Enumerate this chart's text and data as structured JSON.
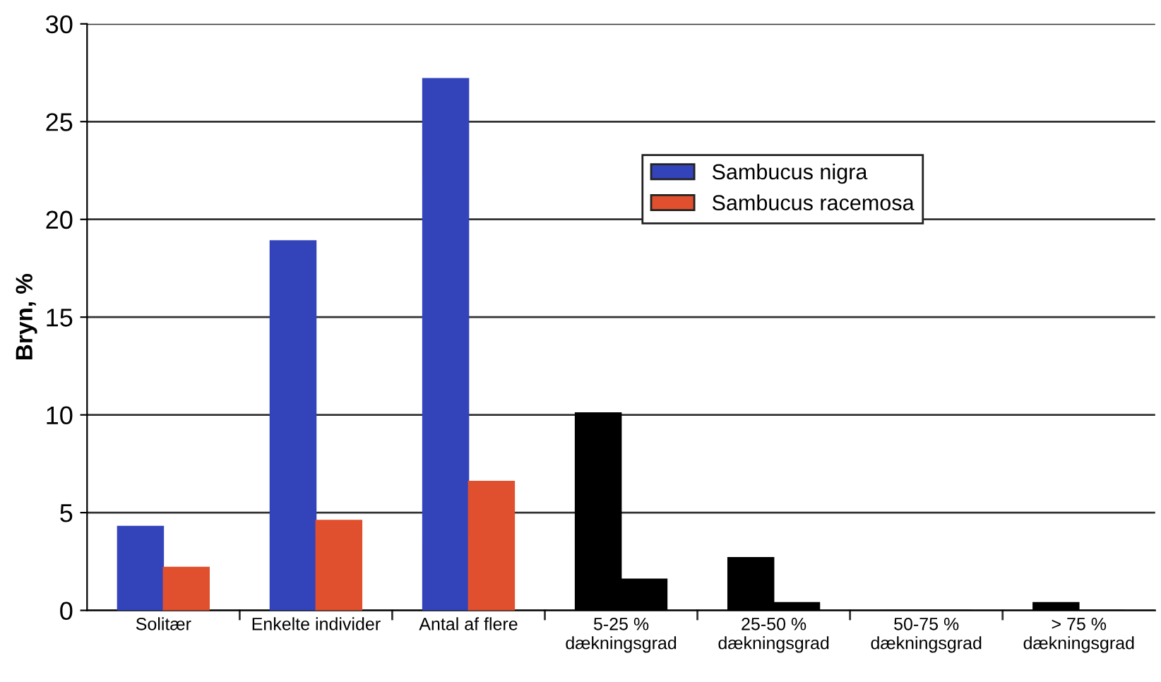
{
  "chart_data": {
    "type": "bar",
    "ylabel": "Bryn, %",
    "categories": [
      "Solitær",
      "Enkelte individer",
      "Antal af flere",
      "5-25 %\ndækningsgrad",
      "25-50 %\ndækningsgrad",
      "50-75 %\ndækningsgrad",
      "> 75 %\ndækningsgrad"
    ],
    "series": [
      {
        "name": "Sambucus nigra",
        "color": "#3344bb",
        "colors": [
          "#3344bb",
          "#3344bb",
          "#3344bb",
          "#000000",
          "#000000",
          "#000000",
          "#000000"
        ],
        "values": [
          4.3,
          18.9,
          27.2,
          10.1,
          2.7,
          0,
          0.4
        ]
      },
      {
        "name": "Sambucus racemosa",
        "color": "#e0502e",
        "colors": [
          "#e0502e",
          "#e0502e",
          "#e0502e",
          "#000000",
          "#000000",
          "#000000",
          "#000000"
        ],
        "values": [
          2.2,
          4.6,
          6.6,
          1.6,
          0.4,
          0,
          0
        ]
      }
    ],
    "ylim": [
      0,
      30
    ],
    "yticks": [
      0,
      5,
      10,
      15,
      20,
      25,
      30
    ],
    "grid": "y",
    "legend": "top right"
  }
}
